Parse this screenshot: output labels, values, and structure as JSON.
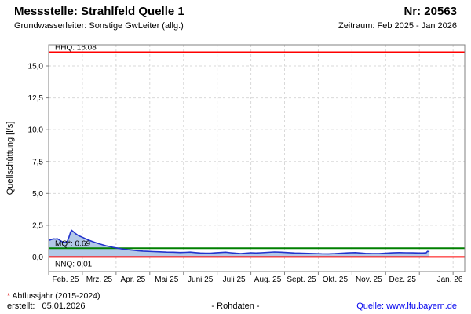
{
  "header": {
    "station": "Messstelle: Strahlfeld Quelle 1",
    "number": "Nr: 20563",
    "aquifer": "Grundwasserleiter: Sonstige GwLeiter (allg.)",
    "period": "Zeitraum: Feb 2025 - Jan 2026"
  },
  "footer": {
    "asterisk": "*",
    "footnote": " Abflussjahr (2015-2024)",
    "created_label": "erstellt:",
    "created_date": "05.01.2026",
    "center_note": "- Rohdaten -",
    "source_text": "Quelle: www.lfu.bayern.de"
  },
  "chart_data": {
    "type": "area",
    "ylabel": "Quellschüttung [l/s]",
    "ylim": [
      -1.14,
      16.67
    ],
    "grid": true,
    "colors": {
      "series_line": "#2233cc",
      "series_fill": "#b3c9e8",
      "hhq_nnq": "#ff0000",
      "mq": "#008000",
      "grid_line": "#d9d9d9",
      "axis": "#808080",
      "text": "#000000"
    },
    "yticks": [
      {
        "value": 0.0,
        "label": "0,0"
      },
      {
        "value": 2.5,
        "label": "2,5"
      },
      {
        "value": 5.0,
        "label": "5,0"
      },
      {
        "value": 7.5,
        "label": "7,5"
      },
      {
        "value": 10.0,
        "label": "10,0"
      },
      {
        "value": 12.5,
        "label": "12,5"
      },
      {
        "value": 15.0,
        "label": "15,0"
      }
    ],
    "x_month_labels": [
      "Feb. 25",
      "Mrz. 25",
      "Apr. 25",
      "Mai 25",
      "Juni 25",
      "Juli 25",
      "Aug. 25",
      "Sept. 25",
      "Okt. 25",
      "Nov. 25",
      "Dez. 25",
      "Jan. 26"
    ],
    "reference_lines": [
      {
        "name": "HHQ",
        "label": "HHQ: 16.08",
        "value": 16.08,
        "color": "#ff0000"
      },
      {
        "name": "MQ",
        "label": "MQ*: 0.69",
        "value": 0.69,
        "color": "#008000"
      },
      {
        "name": "NNQ",
        "label": "NNQ: 0.01",
        "value": 0.01,
        "color": "#ff0000"
      }
    ],
    "series": {
      "name": "Rohdaten",
      "x_unit": "months_since_feb_2025",
      "y_unit": "l/s",
      "points": [
        [
          0.0,
          1.3
        ],
        [
          0.05,
          1.35
        ],
        [
          0.1,
          1.4
        ],
        [
          0.15,
          1.43
        ],
        [
          0.2,
          1.41
        ],
        [
          0.25,
          1.44
        ],
        [
          0.3,
          1.38
        ],
        [
          0.35,
          1.28
        ],
        [
          0.4,
          1.2
        ],
        [
          0.45,
          1.16
        ],
        [
          0.5,
          1.14
        ],
        [
          0.55,
          1.22
        ],
        [
          0.6,
          1.55
        ],
        [
          0.65,
          1.95
        ],
        [
          0.68,
          2.1
        ],
        [
          0.72,
          2.02
        ],
        [
          0.78,
          1.88
        ],
        [
          0.85,
          1.74
        ],
        [
          0.92,
          1.64
        ],
        [
          1.0,
          1.55
        ],
        [
          1.1,
          1.43
        ],
        [
          1.2,
          1.32
        ],
        [
          1.3,
          1.22
        ],
        [
          1.4,
          1.13
        ],
        [
          1.5,
          1.04
        ],
        [
          1.6,
          0.96
        ],
        [
          1.7,
          0.89
        ],
        [
          1.8,
          0.83
        ],
        [
          1.9,
          0.77
        ],
        [
          2.0,
          0.72
        ],
        [
          2.1,
          0.67
        ],
        [
          2.2,
          0.63
        ],
        [
          2.35,
          0.58
        ],
        [
          2.5,
          0.54
        ],
        [
          2.65,
          0.5
        ],
        [
          2.8,
          0.47
        ],
        [
          2.95,
          0.45
        ],
        [
          3.1,
          0.43
        ],
        [
          3.3,
          0.41
        ],
        [
          3.5,
          0.39
        ],
        [
          3.7,
          0.38
        ],
        [
          3.9,
          0.36
        ],
        [
          4.05,
          0.37
        ],
        [
          4.2,
          0.39
        ],
        [
          4.35,
          0.35
        ],
        [
          4.5,
          0.32
        ],
        [
          4.65,
          0.3
        ],
        [
          4.8,
          0.3
        ],
        [
          4.95,
          0.33
        ],
        [
          5.1,
          0.36
        ],
        [
          5.25,
          0.38
        ],
        [
          5.4,
          0.34
        ],
        [
          5.55,
          0.3
        ],
        [
          5.7,
          0.28
        ],
        [
          5.85,
          0.31
        ],
        [
          6.0,
          0.34
        ],
        [
          6.15,
          0.32
        ],
        [
          6.3,
          0.34
        ],
        [
          6.5,
          0.37
        ],
        [
          6.7,
          0.4
        ],
        [
          6.9,
          0.38
        ],
        [
          7.1,
          0.35
        ],
        [
          7.3,
          0.32
        ],
        [
          7.5,
          0.31
        ],
        [
          7.7,
          0.29
        ],
        [
          7.9,
          0.28
        ],
        [
          8.1,
          0.26
        ],
        [
          8.3,
          0.25
        ],
        [
          8.5,
          0.27
        ],
        [
          8.7,
          0.3
        ],
        [
          8.9,
          0.33
        ],
        [
          9.1,
          0.35
        ],
        [
          9.25,
          0.32
        ],
        [
          9.4,
          0.29
        ],
        [
          9.6,
          0.27
        ],
        [
          9.8,
          0.28
        ],
        [
          10.0,
          0.3
        ],
        [
          10.2,
          0.33
        ],
        [
          10.4,
          0.35
        ],
        [
          10.6,
          0.34
        ],
        [
          10.8,
          0.33
        ],
        [
          11.0,
          0.32
        ],
        [
          11.1,
          0.32
        ],
        [
          11.2,
          0.33
        ],
        [
          11.24,
          0.45
        ],
        [
          11.3,
          0.43
        ]
      ]
    }
  }
}
